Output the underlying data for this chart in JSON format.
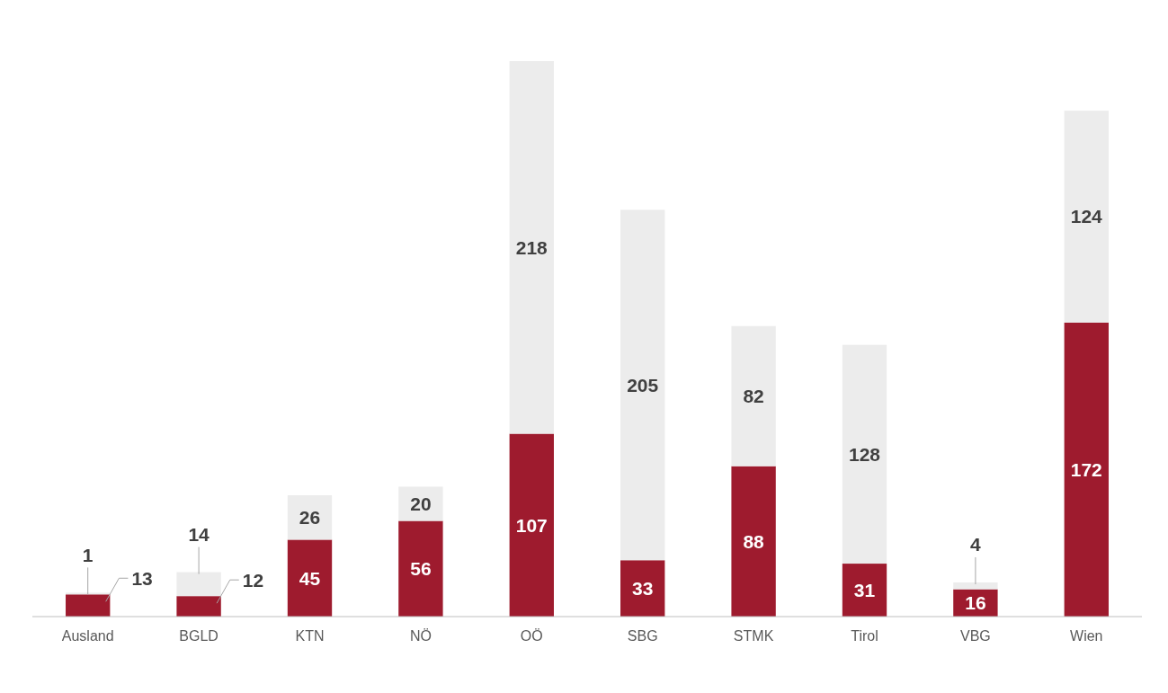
{
  "chart_data": {
    "type": "bar",
    "stacked": true,
    "data_labels": true,
    "categories": [
      "Ausland",
      "BGLD",
      "KTN",
      "NÖ",
      "OÖ",
      "SBG",
      "STMK",
      "Tirol",
      "VBG",
      "Wien"
    ],
    "series": [
      {
        "color": "#9e1b2e",
        "values": [
          13,
          12,
          45,
          56,
          107,
          33,
          88,
          31,
          16,
          172
        ]
      },
      {
        "color": "#ececec",
        "values": [
          1,
          14,
          26,
          20,
          218,
          205,
          82,
          128,
          4,
          124
        ]
      }
    ]
  }
}
